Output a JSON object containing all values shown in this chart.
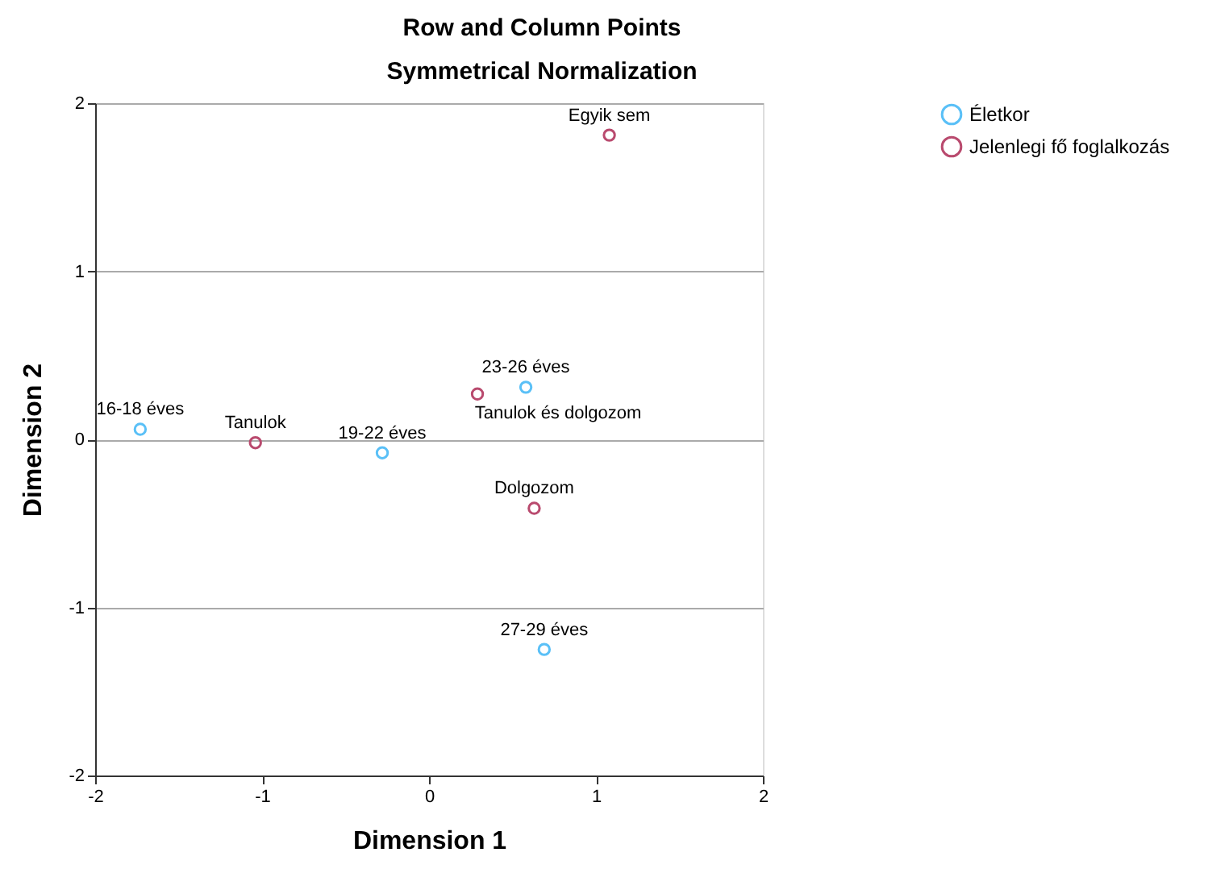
{
  "chart_data": {
    "type": "scatter",
    "title": "Row and Column Points",
    "subtitle": "Symmetrical Normalization",
    "xlabel": "Dimension 1",
    "ylabel": "Dimension 2",
    "series": [
      {
        "name": "Életkor",
        "color": "#5ac0f7",
        "x": [
          -1.73,
          -0.28,
          0.58,
          0.69
        ],
        "values": [
          0.06,
          -0.08,
          0.31,
          -1.25
        ]
      },
      {
        "name": "Jelenlegi fő foglalkozás",
        "color": "#b94a6e",
        "x": [
          -1.04,
          0.29,
          0.63,
          1.08
        ],
        "values": [
          -0.02,
          0.27,
          -0.41,
          1.81
        ]
      }
    ],
    "annotations": [
      {
        "text": "16-18 éves",
        "x": -1.73,
        "y": 0.06
      },
      {
        "text": "19-22 éves",
        "x": -0.28,
        "y": -0.08
      },
      {
        "text": "23-26 éves",
        "x": 0.58,
        "y": 0.31
      },
      {
        "text": "27-29 éves",
        "x": 0.69,
        "y": -1.25
      },
      {
        "text": "Tanulok",
        "x": -1.04,
        "y": -0.02
      },
      {
        "text": "Tanulok és dolgozom",
        "x": 0.29,
        "y": 0.27
      },
      {
        "text": "Dolgozom",
        "x": 0.63,
        "y": -0.41
      },
      {
        "text": "Egyik sem",
        "x": 1.08,
        "y": 1.81
      }
    ],
    "xlim": [
      -2,
      2
    ],
    "ylim": [
      -2,
      2
    ],
    "xticks": [
      -2,
      -1,
      0,
      1,
      2
    ],
    "yticks": [
      -2,
      -1,
      0,
      1,
      2
    ],
    "grid": "y",
    "legend": "top right",
    "marker": "circle"
  }
}
